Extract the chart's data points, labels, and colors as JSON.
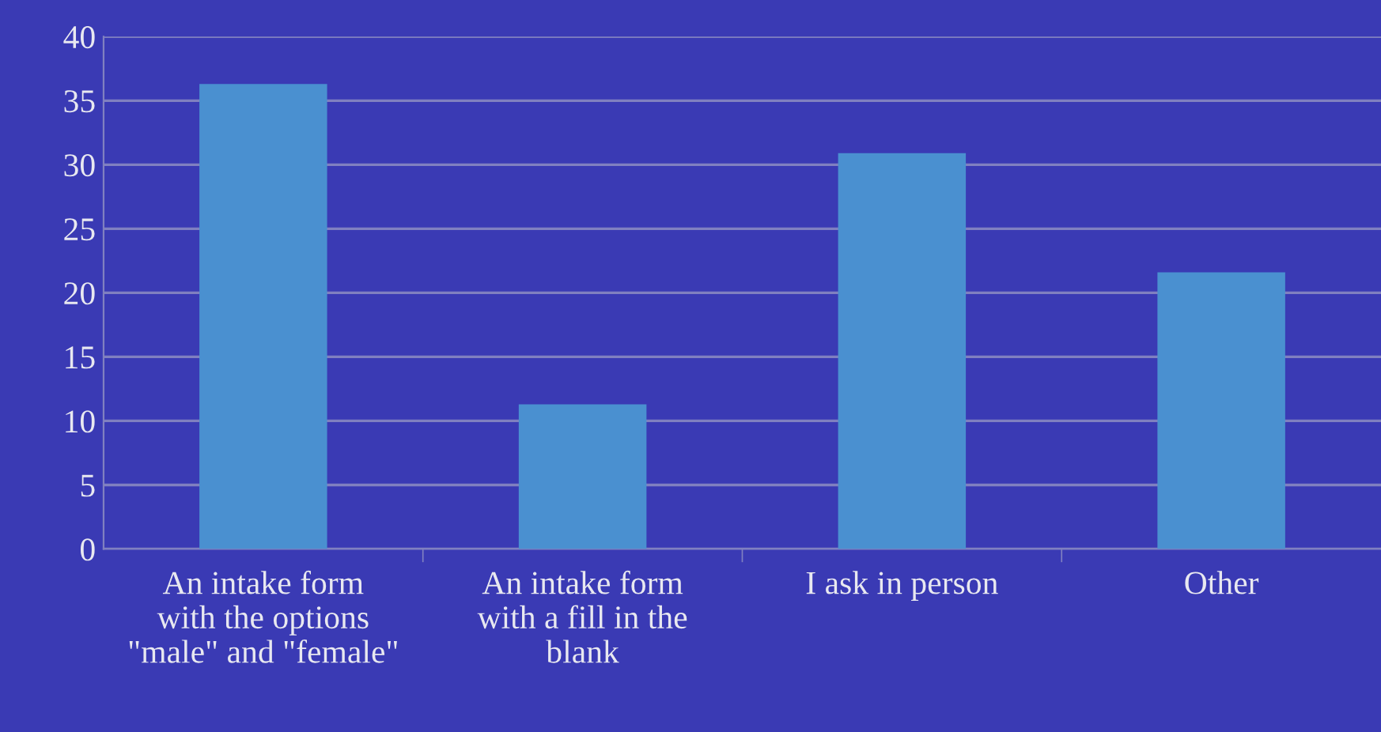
{
  "chart_data": {
    "type": "bar",
    "categories": [
      "An intake form\nwith the options\n\"male\" and \"female\"",
      "An intake form\nwith a fill in the\nblank",
      "I ask in person",
      "Other"
    ],
    "values": [
      36.3,
      11.3,
      30.9,
      21.6
    ],
    "color": "#4a90d0",
    "ylim": [
      0,
      40
    ],
    "yticks": [
      0,
      5,
      10,
      15,
      20,
      25,
      30,
      35,
      40
    ],
    "grid": "y"
  }
}
